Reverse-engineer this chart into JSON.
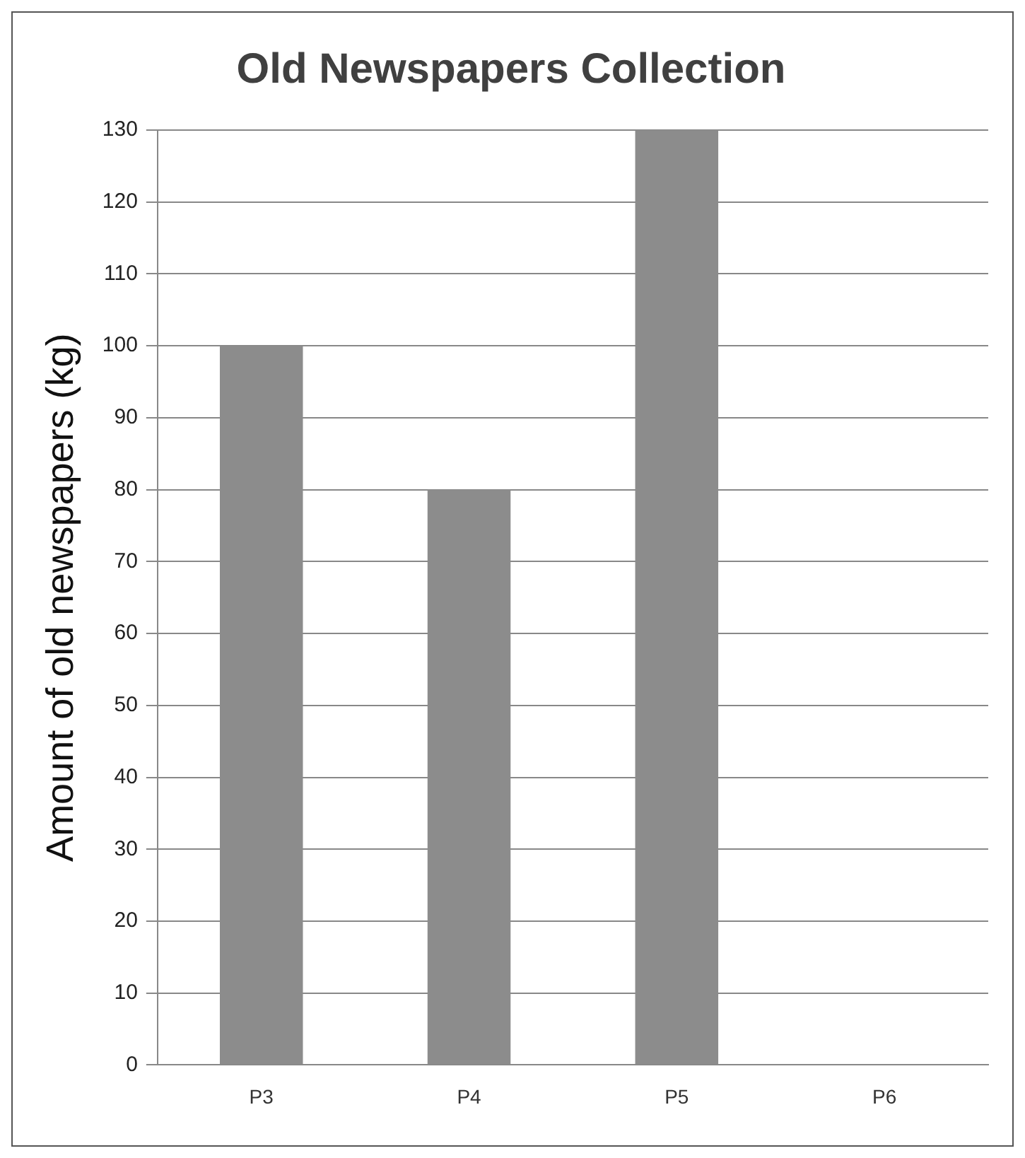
{
  "chart_data": {
    "type": "bar",
    "title": "Old Newspapers Collection",
    "ylabel": "Amount of old newspapers (kg)",
    "categories": [
      "P3",
      "P4",
      "P5",
      "P6"
    ],
    "values": [
      100,
      80,
      130,
      null
    ],
    "color": "#8c8c8c",
    "ylim": [
      0,
      130
    ],
    "yticks": [
      0,
      10,
      20,
      30,
      40,
      50,
      60,
      70,
      80,
      90,
      100,
      110,
      120,
      130
    ],
    "grid": "y",
    "legend": false
  }
}
